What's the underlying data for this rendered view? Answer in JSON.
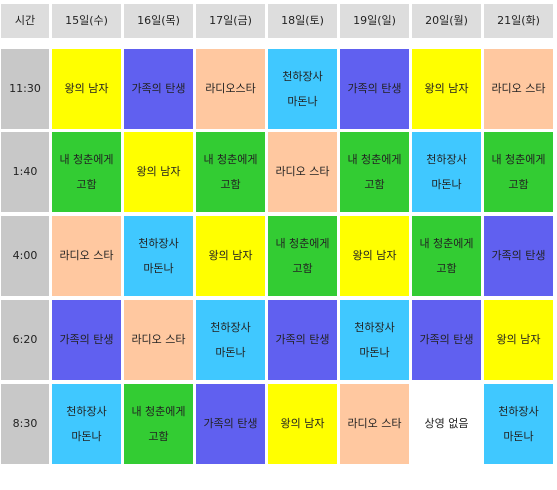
{
  "colors": {
    "header_bg": "#dddddd",
    "time_bg": "#c8c8c8",
    "yellow": "#ffff00",
    "blue": "#6060f0",
    "peach": "#ffc8a0",
    "cyan": "#40c8ff",
    "green": "#33cc33",
    "white": "#ffffff"
  },
  "header": {
    "time_label": "시간",
    "days": [
      "15일(수)",
      "16일(목)",
      "17일(금)",
      "18일(토)",
      "19일(일)",
      "20일(월)",
      "21일(화)"
    ]
  },
  "rows": [
    {
      "time": "11:30",
      "cells": [
        {
          "lines": [
            "왕의 남자"
          ],
          "color": "yellow"
        },
        {
          "lines": [
            "가족의 탄생"
          ],
          "color": "blue"
        },
        {
          "lines": [
            "라디오스타"
          ],
          "color": "peach"
        },
        {
          "lines": [
            "천하장사",
            "마돈나"
          ],
          "color": "cyan"
        },
        {
          "lines": [
            "가족의 탄생"
          ],
          "color": "blue"
        },
        {
          "lines": [
            "왕의 남자"
          ],
          "color": "yellow"
        },
        {
          "lines": [
            "라디오 스타"
          ],
          "color": "peach"
        }
      ]
    },
    {
      "time": "1:40",
      "cells": [
        {
          "lines": [
            "내 청춘에게",
            "고함"
          ],
          "color": "green"
        },
        {
          "lines": [
            "왕의 남자"
          ],
          "color": "yellow"
        },
        {
          "lines": [
            "내 청춘에게",
            "고함"
          ],
          "color": "green"
        },
        {
          "lines": [
            "라디오 스타"
          ],
          "color": "peach"
        },
        {
          "lines": [
            "내 청춘에게",
            "고함"
          ],
          "color": "green"
        },
        {
          "lines": [
            "천하장사",
            "마돈나"
          ],
          "color": "cyan"
        },
        {
          "lines": [
            "내 청춘에게",
            "고함"
          ],
          "color": "green"
        }
      ]
    },
    {
      "time": "4:00",
      "cells": [
        {
          "lines": [
            "라디오 스타"
          ],
          "color": "peach"
        },
        {
          "lines": [
            "천하장사",
            "마돈나"
          ],
          "color": "cyan"
        },
        {
          "lines": [
            "왕의 남자"
          ],
          "color": "yellow"
        },
        {
          "lines": [
            "내 청춘에게",
            "고함"
          ],
          "color": "green"
        },
        {
          "lines": [
            "왕의 남자"
          ],
          "color": "yellow"
        },
        {
          "lines": [
            "내 청춘에게",
            "고함"
          ],
          "color": "green"
        },
        {
          "lines": [
            "가족의 탄생"
          ],
          "color": "blue"
        }
      ]
    },
    {
      "time": "6:20",
      "cells": [
        {
          "lines": [
            "가족의 탄생"
          ],
          "color": "blue"
        },
        {
          "lines": [
            "라디오 스타"
          ],
          "color": "peach"
        },
        {
          "lines": [
            "천하장사",
            "마돈나"
          ],
          "color": "cyan"
        },
        {
          "lines": [
            "가족의 탄생"
          ],
          "color": "blue"
        },
        {
          "lines": [
            "천하장사",
            "마돈나"
          ],
          "color": "cyan"
        },
        {
          "lines": [
            "가족의 탄생"
          ],
          "color": "blue"
        },
        {
          "lines": [
            "왕의 남자"
          ],
          "color": "yellow"
        }
      ]
    },
    {
      "time": "8:30",
      "cells": [
        {
          "lines": [
            "천하장사",
            "마돈나"
          ],
          "color": "cyan"
        },
        {
          "lines": [
            "내 청춘에게",
            "고함"
          ],
          "color": "green"
        },
        {
          "lines": [
            "가족의 탄생"
          ],
          "color": "blue"
        },
        {
          "lines": [
            "왕의 남자"
          ],
          "color": "yellow"
        },
        {
          "lines": [
            "라디오 스타"
          ],
          "color": "peach"
        },
        {
          "lines": [
            "상영 없음"
          ],
          "color": "white"
        },
        {
          "lines": [
            "천하장사",
            "마돈나"
          ],
          "color": "cyan"
        }
      ]
    }
  ]
}
